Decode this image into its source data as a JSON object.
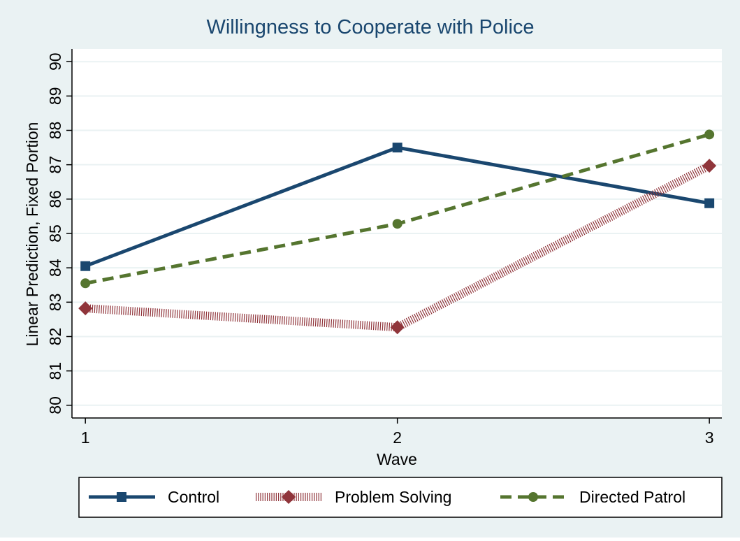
{
  "chart_data": {
    "type": "line",
    "title": "Willingness to Cooperate with Police",
    "x_label": "Wave",
    "y_label": "Linear Prediction, Fixed Portion",
    "x": [
      1,
      2,
      3
    ],
    "xlim": [
      0.957,
      3.04
    ],
    "xticks": [
      1,
      2,
      3
    ],
    "ylim": [
      79.63,
      90.37
    ],
    "yticks": [
      80,
      81,
      82,
      83,
      84,
      85,
      86,
      87,
      88,
      89,
      90
    ],
    "grid": true,
    "legend": "bottom",
    "series": [
      {
        "name": "Control",
        "color": "#1a476f",
        "marker": "square",
        "line_style": "solid",
        "values": [
          84.05,
          87.5,
          85.88
        ]
      },
      {
        "name": "Problem Solving",
        "color": "#90353b",
        "marker": "diamond",
        "line_style": "hatched",
        "values": [
          82.82,
          82.27,
          86.97
        ]
      },
      {
        "name": "Directed Patrol",
        "color": "#55752f",
        "marker": "circle",
        "line_style": "dashed",
        "values": [
          83.55,
          85.28,
          87.88
        ]
      }
    ]
  }
}
